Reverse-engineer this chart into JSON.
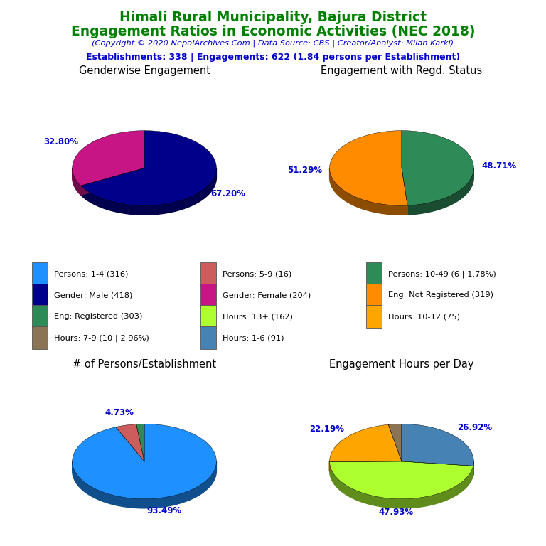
{
  "title_line1": "Himali Rural Municipality, Bajura District",
  "title_line2": "Engagement Ratios in Economic Activities (NEC 2018)",
  "subtitle": "(Copyright © 2020 NepalArchives.Com | Data Source: CBS | Creator/Analyst: Milan Karki)",
  "stats_line": "Establishments: 338 | Engagements: 622 (1.84 persons per Establishment)",
  "title_color": "#008000",
  "subtitle_color": "#0000CD",
  "stats_color": "#0000CD",
  "pie1_title": "Genderwise Engagement",
  "pie1_values": [
    67.2,
    32.8
  ],
  "pie1_colors": [
    "#00008B",
    "#C71585"
  ],
  "pie1_labels": [
    "67.20%",
    "32.80%"
  ],
  "pie1_label_positions": [
    "top_left",
    "bottom_right"
  ],
  "pie2_title": "Engagement with Regd. Status",
  "pie2_values": [
    48.71,
    51.29
  ],
  "pie2_colors": [
    "#2E8B57",
    "#FF8C00"
  ],
  "pie2_labels": [
    "48.71%",
    "51.29%"
  ],
  "pie2_label_positions": [
    "top",
    "bottom"
  ],
  "pie3_title": "# of Persons/Establishment",
  "pie3_values": [
    93.49,
    4.73,
    1.78
  ],
  "pie3_colors": [
    "#1E90FF",
    "#CD5C5C",
    "#2E8B57"
  ],
  "pie3_labels": [
    "93.49%",
    "4.73%",
    ""
  ],
  "pie4_title": "Engagement Hours per Day",
  "pie4_values": [
    26.92,
    47.93,
    22.19,
    2.96
  ],
  "pie4_colors": [
    "#4682B4",
    "#ADFF2F",
    "#FFA500",
    "#8B7355"
  ],
  "pie4_labels": [
    "26.92%",
    "47.93%",
    "22.19%",
    ""
  ],
  "label_color": "#0000CD",
  "legend_items": [
    {
      "label": "Persons: 1-4 (316)",
      "color": "#1E90FF"
    },
    {
      "label": "Persons: 5-9 (16)",
      "color": "#CD5C5C"
    },
    {
      "label": "Persons: 10-49 (6 | 1.78%)",
      "color": "#2E8B57"
    },
    {
      "label": "Gender: Male (418)",
      "color": "#00008B"
    },
    {
      "label": "Gender: Female (204)",
      "color": "#C71585"
    },
    {
      "label": "Eng: Not Registered (319)",
      "color": "#FF8C00"
    },
    {
      "label": "Eng: Registered (303)",
      "color": "#2E8B57"
    },
    {
      "label": "Hours: 13+ (162)",
      "color": "#ADFF2F"
    },
    {
      "label": "Hours: 10-12 (75)",
      "color": "#FFA500"
    },
    {
      "label": "Hours: 7-9 (10 | 2.96%)",
      "color": "#8B7355"
    },
    {
      "label": "Hours: 1-6 (91)",
      "color": "#4682B4"
    }
  ],
  "legend_cols": 3,
  "legend_rows": 4
}
